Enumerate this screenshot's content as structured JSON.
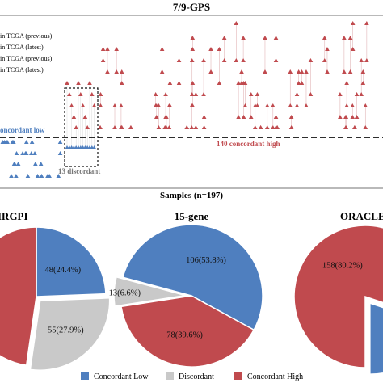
{
  "chart_data": [
    {
      "type": "scatter",
      "title": "7/9-GPS",
      "row_labels": [
        "in TCGA (previous)",
        "in TCGA (latest)",
        "in TCGA (previous)",
        "in TCGA (latest)"
      ],
      "annotations": {
        "concordant_low": "oncordant low",
        "concordant_high": "140 concordant high",
        "discordant": "13 discordant"
      },
      "series": [
        {
          "name": "Concordant Low",
          "color": "#4f7fbf",
          "count": 44
        },
        {
          "name": "Discordant",
          "color": "#b0b0b0",
          "count": 13
        },
        {
          "name": "Concordant High",
          "color": "#c04a4e",
          "count": 140
        }
      ]
    },
    {
      "type": "pie",
      "section_title": "Samples (n=197)",
      "charts": [
        {
          "title": "IRGPI",
          "slices": [
            {
              "name": "Concordant Low",
              "value": 48,
              "label": "48(24.4%)"
            },
            {
              "name": "Discordant",
              "value": 55,
              "label": "55(27.9%)"
            },
            {
              "name": "Concordant High",
              "value": 94,
              "label": ""
            }
          ]
        },
        {
          "title": "15-gene",
          "slices": [
            {
              "name": "Concordant Low",
              "value": 106,
              "label": "106(53.8%)"
            },
            {
              "name": "Concordant High",
              "value": 78,
              "label": "78(39.6%)"
            },
            {
              "name": "Discordant",
              "value": 13,
              "label": "13(6.6%)"
            }
          ]
        },
        {
          "title": "ORACLE",
          "slices": [
            {
              "name": "Concordant High",
              "value": 158,
              "label": "158(80.2%)"
            },
            {
              "name": "Concordant Low",
              "value": 39,
              "label": ""
            }
          ]
        }
      ],
      "legend": [
        "Concordant Low",
        "Discordant",
        "Concordant High"
      ]
    }
  ],
  "colors": {
    "low": "#4f7fbf",
    "discordant": "#c9c9c9",
    "high": "#c04a4e"
  }
}
